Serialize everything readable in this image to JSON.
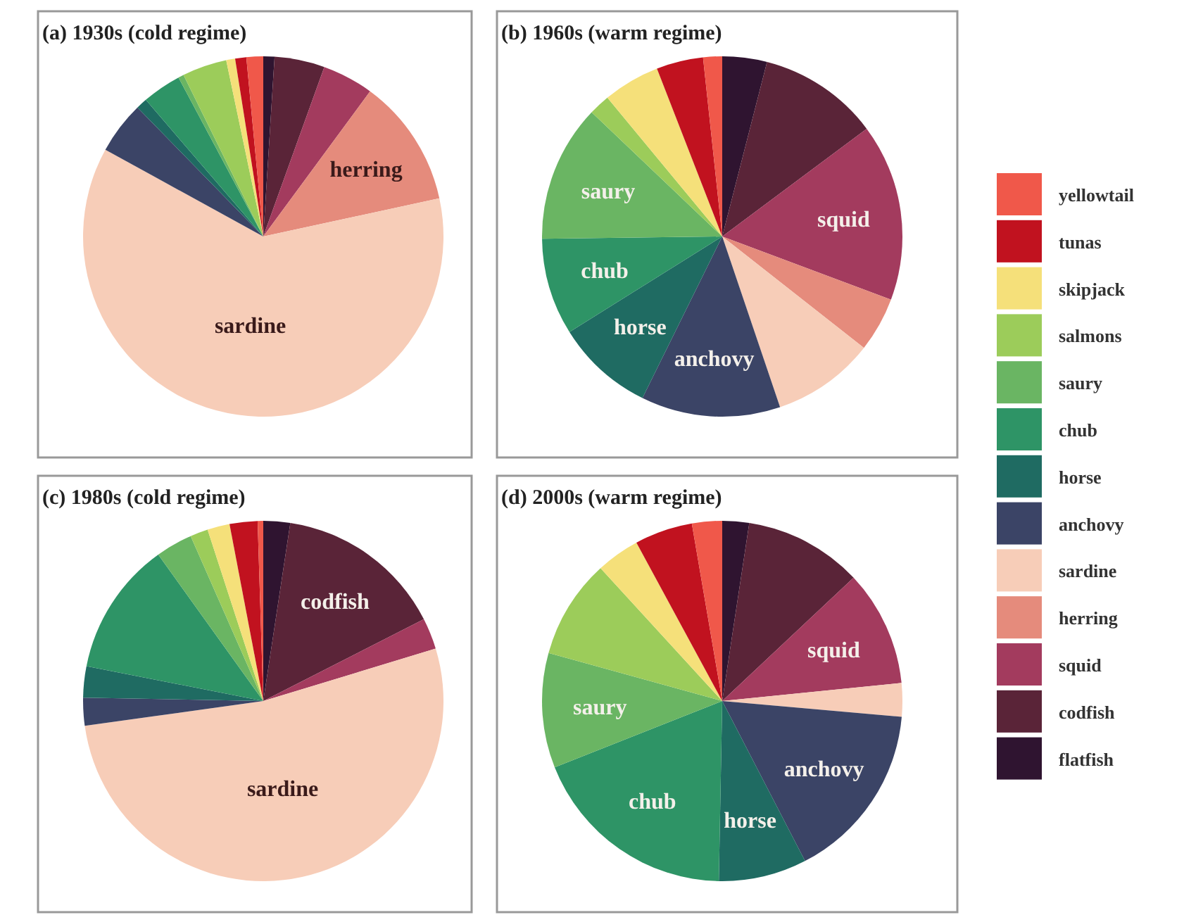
{
  "chart_data": [
    {
      "type": "pie",
      "title": "(a) 1930s (cold regime)",
      "categories": [
        "flatfish",
        "codfish",
        "squid",
        "herring",
        "sardine",
        "anchovy",
        "horse",
        "chub",
        "saury",
        "salmons",
        "skipjack",
        "tunas",
        "yellowtail"
      ],
      "values": [
        1,
        4.5,
        4.6,
        11.5,
        61.4,
        4.7,
        1,
        3.5,
        0.5,
        4,
        0.8,
        1,
        1.5
      ],
      "colors": [
        "#2f1430",
        "#5a2438",
        "#a33b5e",
        "#e58b7c",
        "#f7cdb8",
        "#3b4466",
        "#1f6b62",
        "#2e9466",
        "#6ab563",
        "#9ccc5a",
        "#f5e07a",
        "#c1121f",
        "#f0584a"
      ],
      "annotations": [
        {
          "text": "herring",
          "x": "herring"
        },
        {
          "text": "sardine",
          "x": "sardine"
        }
      ],
      "legend": "right"
    },
    {
      "type": "pie",
      "title": "(b) 1960s  (warm regime)",
      "categories": [
        null,
        null,
        "squid",
        null,
        null,
        "anchovy",
        "horse",
        "chub",
        "saury",
        null,
        null,
        null,
        null
      ],
      "values": [
        4,
        10.8,
        15.9,
        4.9,
        9.2,
        12.5,
        8.8,
        8.7,
        12.3,
        1.9,
        5.1,
        4.2,
        1.7
      ],
      "colors": [
        "#2f1430",
        "#5a2438",
        "#a33b5e",
        "#e58b7c",
        "#f7cdb8",
        "#3b4466",
        "#1f6b62",
        "#2e9466",
        "#6ab563",
        "#9ccc5a",
        "#f5e07a",
        "#c1121f",
        "#f0584a"
      ]
    },
    {
      "type": "pie",
      "title": "(c) 1980s  (cold regime)",
      "categories": [
        null,
        "codfish",
        null,
        null,
        "sardine",
        null,
        null,
        null,
        null,
        null,
        null,
        null,
        null
      ],
      "values": [
        2.4,
        15.1,
        2.8,
        0,
        52.5,
        2.5,
        2.8,
        12,
        3.3,
        1.6,
        2,
        2.5,
        0.5
      ],
      "colors": [
        "#2f1430",
        "#5a2438",
        "#a33b5e",
        "#e58b7c",
        "#f7cdb8",
        "#3b4466",
        "#1f6b62",
        "#2e9466",
        "#6ab563",
        "#9ccc5a",
        "#f5e07a",
        "#c1121f",
        "#f0584a"
      ]
    },
    {
      "type": "pie",
      "title": "(d) 2000s  (warm regime)",
      "categories": [
        null,
        null,
        "squid",
        null,
        null,
        "anchovy",
        "horse",
        "chub",
        "saury",
        null,
        null,
        null,
        null
      ],
      "values": [
        2.4,
        10.6,
        10.4,
        0,
        3,
        16,
        7.9,
        18.7,
        10.3,
        8.9,
        3.9,
        5.2,
        2.7
      ],
      "colors": [
        "#2f1430",
        "#5a2438",
        "#a33b5e",
        "#e58b7c",
        "#f7cdb8",
        "#3b4466",
        "#1f6b62",
        "#2e9466",
        "#6ab563",
        "#9ccc5a",
        "#f5e07a",
        "#c1121f",
        "#f0584a"
      ]
    }
  ]
}
